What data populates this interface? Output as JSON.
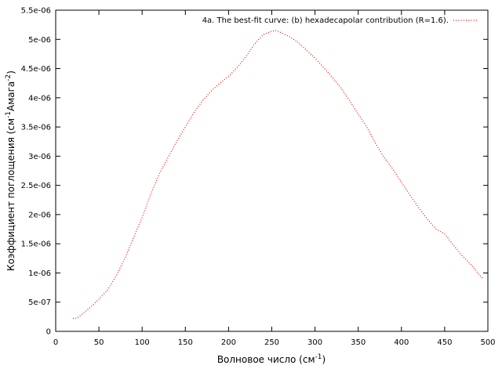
{
  "chart_data": {
    "type": "line",
    "xlabel": "Волновое число (см",
    "xlabel_sup": "-1",
    "xlabel_end": ")",
    "ylabel": "Коэффициент поглощения (см",
    "ylabel_sup1": "-1",
    "ylabel_mid": "Амага",
    "ylabel_sup2": "-2",
    "ylabel_end": ")",
    "xlim": [
      0,
      500
    ],
    "ylim": [
      0,
      5.5e-06
    ],
    "x_ticks": [
      0,
      50,
      100,
      150,
      200,
      250,
      300,
      350,
      400,
      450,
      500
    ],
    "x_tick_labels": [
      "0",
      "50",
      "100",
      "150",
      "200",
      "250",
      "300",
      "350",
      "400",
      "450",
      "500"
    ],
    "y_ticks": [
      0,
      5e-07,
      1e-06,
      1.5e-06,
      2e-06,
      2.5e-06,
      3e-06,
      3.5e-06,
      4e-06,
      4.5e-06,
      5e-06,
      5.5e-06
    ],
    "y_tick_labels": [
      "0",
      "5e-07",
      "1e-06",
      "1.5e-06",
      "2e-06",
      "2.5e-06",
      "3e-06",
      "3.5e-06",
      "4e-06",
      "4.5e-06",
      "5e-06",
      "5.5e-06"
    ],
    "grid": false,
    "legend_position": "top-right",
    "series": [
      {
        "name": "4a. The best-fit curve: (b) hexadecapolar contribution (R=1.6).",
        "color": "#ff0000",
        "style": "dotted",
        "x": [
          20,
          25,
          30,
          40,
          50,
          60,
          70,
          80,
          90,
          100,
          110,
          120,
          130,
          140,
          150,
          160,
          170,
          180,
          190,
          200,
          210,
          220,
          230,
          240,
          250,
          255,
          260,
          270,
          280,
          290,
          300,
          310,
          320,
          330,
          340,
          350,
          360,
          370,
          380,
          390,
          400,
          410,
          420,
          430,
          440,
          450,
          460,
          470,
          480,
          490,
          495
        ],
        "y": [
          2.2e-07,
          2.3e-07,
          2.9e-07,
          4.1e-07,
          5.5e-07,
          7.1e-07,
          9.5e-07,
          1.25e-06,
          1.6e-06,
          1.95e-06,
          2.35e-06,
          2.7e-06,
          2.98e-06,
          3.25e-06,
          3.5e-06,
          3.75e-06,
          3.95e-06,
          4.12e-06,
          4.25e-06,
          4.37e-06,
          4.52e-06,
          4.7e-06,
          4.92e-06,
          5.08e-06,
          5.14e-06,
          5.15e-06,
          5.12e-06,
          5.05e-06,
          4.95e-06,
          4.82e-06,
          4.68e-06,
          4.52e-06,
          4.35e-06,
          4.17e-06,
          3.95e-06,
          3.72e-06,
          3.5e-06,
          3.22e-06,
          2.98e-06,
          2.78e-06,
          2.55e-06,
          2.33e-06,
          2.12e-06,
          1.92e-06,
          1.75e-06,
          1.67e-06,
          1.48e-06,
          1.3e-06,
          1.15e-06,
          9.7e-07,
          8.9e-07
        ]
      }
    ]
  }
}
